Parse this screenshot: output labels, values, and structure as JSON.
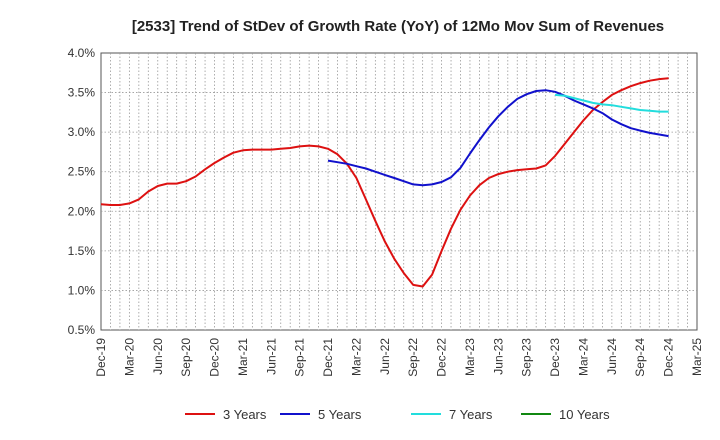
{
  "chart_data": {
    "type": "line",
    "title": "[2533]  Trend of StDev of Growth Rate (YoY) of 12Mo Mov Sum of Revenues",
    "xlabel": "",
    "ylabel": "",
    "ylim": [
      0.5,
      4.0
    ],
    "y_ticks": [
      0.5,
      1.0,
      1.5,
      2.0,
      2.5,
      3.0,
      3.5,
      4.0
    ],
    "y_tick_labels": [
      "0.5%",
      "1.0%",
      "1.5%",
      "2.0%",
      "2.5%",
      "3.0%",
      "3.5%",
      "4.0%"
    ],
    "x_tick_labels": [
      "Dec-19",
      "Mar-20",
      "Jun-20",
      "Sep-20",
      "Dec-20",
      "Mar-21",
      "Jun-21",
      "Sep-21",
      "Dec-21",
      "Mar-22",
      "Jun-22",
      "Sep-22",
      "Dec-22",
      "Mar-23",
      "Jun-23",
      "Sep-23",
      "Dec-23",
      "Mar-24",
      "Jun-24",
      "Sep-24",
      "Dec-24",
      "Mar-25"
    ],
    "x_range_months": [
      0,
      63
    ],
    "grid": true,
    "legend_position": "bottom",
    "series": [
      {
        "name": "3 Years",
        "color": "#dd1111",
        "x": [
          0,
          1,
          2,
          3,
          4,
          5,
          6,
          7,
          8,
          9,
          10,
          11,
          12,
          13,
          14,
          15,
          16,
          17,
          18,
          19,
          20,
          21,
          22,
          23,
          24,
          25,
          26,
          27,
          28,
          29,
          30,
          31,
          32,
          33,
          34,
          35,
          36,
          37,
          38,
          39,
          40,
          41,
          42,
          43,
          44,
          45,
          46,
          47,
          48,
          49,
          50,
          51,
          52,
          53,
          54,
          55,
          56,
          57,
          58,
          59,
          60
        ],
        "values": [
          2.09,
          2.08,
          2.08,
          2.1,
          2.15,
          2.25,
          2.32,
          2.35,
          2.35,
          2.38,
          2.44,
          2.53,
          2.61,
          2.68,
          2.74,
          2.77,
          2.78,
          2.78,
          2.78,
          2.79,
          2.8,
          2.82,
          2.83,
          2.82,
          2.79,
          2.72,
          2.6,
          2.42,
          2.15,
          1.88,
          1.62,
          1.4,
          1.22,
          1.07,
          1.05,
          1.2,
          1.5,
          1.78,
          2.02,
          2.2,
          2.33,
          2.42,
          2.47,
          2.5,
          2.52,
          2.53,
          2.54,
          2.58,
          2.7,
          2.85,
          3.0,
          3.15,
          3.28,
          3.38,
          3.47,
          3.53,
          3.58,
          3.62,
          3.65,
          3.67,
          3.68
        ]
      },
      {
        "name": "5 Years",
        "color": "#1111cc",
        "x": [
          24,
          25,
          26,
          27,
          28,
          29,
          30,
          31,
          32,
          33,
          34,
          35,
          36,
          37,
          38,
          39,
          40,
          41,
          42,
          43,
          44,
          45,
          46,
          47,
          48,
          49,
          50,
          51,
          52,
          53,
          54,
          55,
          56,
          57,
          58,
          59,
          60
        ],
        "values": [
          2.64,
          2.62,
          2.6,
          2.57,
          2.54,
          2.5,
          2.46,
          2.42,
          2.38,
          2.34,
          2.33,
          2.34,
          2.37,
          2.43,
          2.55,
          2.73,
          2.9,
          3.06,
          3.2,
          3.32,
          3.42,
          3.48,
          3.52,
          3.53,
          3.51,
          3.46,
          3.4,
          3.35,
          3.3,
          3.24,
          3.16,
          3.1,
          3.05,
          3.02,
          2.99,
          2.97,
          2.95
        ]
      },
      {
        "name": "7 Years",
        "color": "#22dddd",
        "x": [
          48,
          49,
          50,
          51,
          52,
          53,
          54,
          55,
          56,
          57,
          58,
          59,
          60
        ],
        "values": [
          3.47,
          3.46,
          3.43,
          3.4,
          3.37,
          3.35,
          3.34,
          3.32,
          3.3,
          3.28,
          3.27,
          3.26,
          3.26
        ]
      },
      {
        "name": "10 Years",
        "color": "#118811",
        "x": [],
        "values": []
      }
    ]
  }
}
